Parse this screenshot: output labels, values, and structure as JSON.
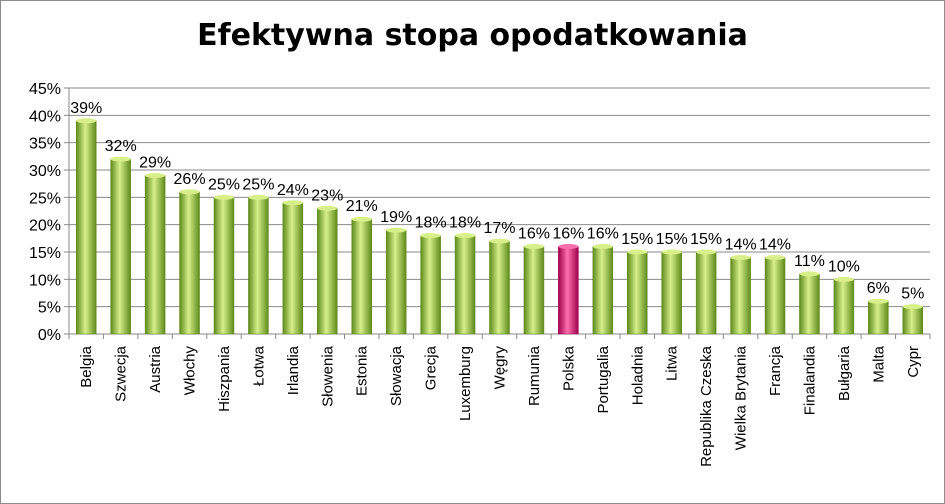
{
  "chart_data": {
    "type": "bar",
    "title": "Efektywna stopa opodatkowania",
    "categories": [
      "Belgia",
      "Szwecja",
      "Austria",
      "Włochy",
      "Hiszpania",
      "Łotwa",
      "Irlandia",
      "Słowenia",
      "Estonia",
      "Słowacja",
      "Grecja",
      "Luxemburg",
      "Węgry",
      "Rumunia",
      "Polska",
      "Portugalia",
      "Holadnia",
      "Litwa",
      "Republika Czeska",
      "Wielka Brytania",
      "Francja",
      "Finalandia",
      "Bułgaria",
      "Malta",
      "Cypr"
    ],
    "values": [
      39,
      32,
      29,
      26,
      25,
      25,
      24,
      23,
      21,
      19,
      18,
      18,
      17,
      16,
      16,
      16,
      15,
      15,
      15,
      14,
      14,
      11,
      10,
      6,
      5
    ],
    "data_labels": [
      "39%",
      "32%",
      "29%",
      "26%",
      "25%",
      "25%",
      "24%",
      "23%",
      "21%",
      "19%",
      "18%",
      "18%",
      "17%",
      "16%",
      "16%",
      "16%",
      "15%",
      "15%",
      "15%",
      "14%",
      "14%",
      "11%",
      "10%",
      "6%",
      "5%"
    ],
    "y_ticks": [
      0,
      5,
      10,
      15,
      20,
      25,
      30,
      35,
      40,
      45
    ],
    "y_tick_labels": [
      "0%",
      "5%",
      "10%",
      "15%",
      "20%",
      "25%",
      "30%",
      "35%",
      "40%",
      "45%"
    ],
    "ylim": [
      0,
      45
    ],
    "highlight_category": "Polska",
    "grid": true,
    "legend": "none",
    "colors": {
      "bar": "#9acd32",
      "bar_dark": "#5e8a1a",
      "bar_light": "#d8f08a",
      "highlight": "#e8006a",
      "highlight_dark": "#a0004a",
      "highlight_light": "#ff6fae",
      "grid": "#8a8a8a",
      "axis": "#8a8a8a"
    }
  }
}
